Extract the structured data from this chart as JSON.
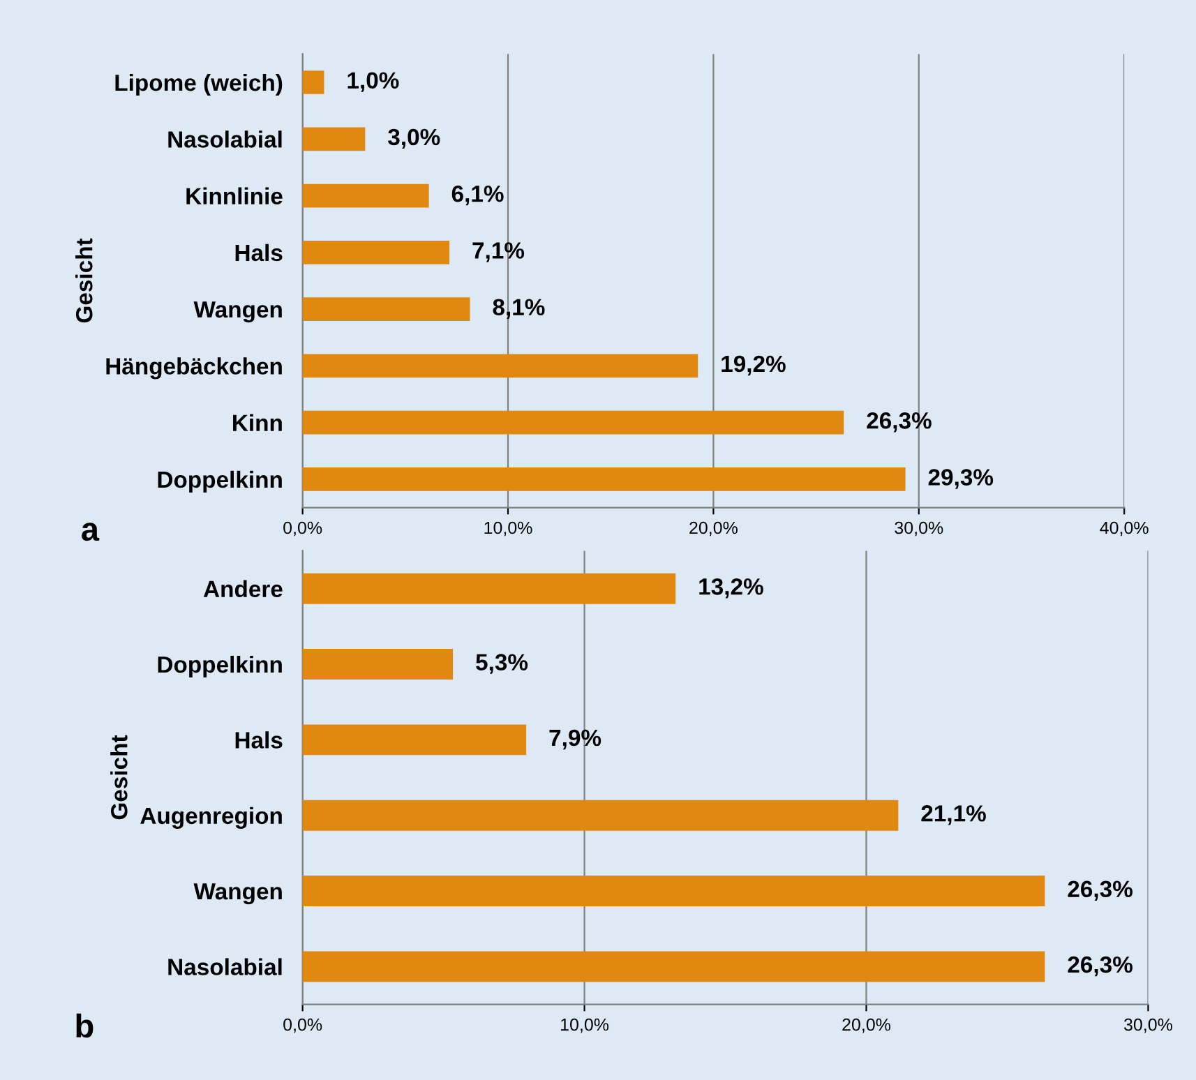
{
  "chart_data": [
    {
      "type": "bar",
      "orientation": "horizontal",
      "ylabel": "Gesicht",
      "annotations": [
        "a"
      ],
      "categories": [
        "Lipome (weich)",
        "Nasolabial",
        "Kinnlinie",
        "Hals",
        "Wangen",
        "Hängebäckchen",
        "Kinn",
        "Doppelkinn"
      ],
      "values": [
        1.0,
        3.0,
        6.1,
        7.1,
        8.1,
        19.2,
        26.3,
        29.3
      ],
      "value_labels": [
        "1,0%",
        "3,0%",
        "6,1%",
        "7,1%",
        "8,1%",
        "19,2%",
        "26,3%",
        "29,3%"
      ],
      "color": "#e0880f",
      "xlim": [
        0,
        40
      ],
      "xticks": [
        {
          "value": 0,
          "label": "0,0%"
        },
        {
          "value": 10,
          "label": "10,0%"
        },
        {
          "value": 20,
          "label": "20,0%"
        },
        {
          "value": 30,
          "label": "30,0%"
        },
        {
          "value": 40,
          "label": "40,0%"
        }
      ],
      "grid": "x"
    },
    {
      "type": "bar",
      "orientation": "horizontal",
      "ylabel": "Gesicht",
      "annotations": [
        "b"
      ],
      "categories": [
        "Andere",
        "Doppelkinn",
        "Hals",
        "Augenregion",
        "Wangen",
        "Nasolabial"
      ],
      "values": [
        13.2,
        5.3,
        7.9,
        21.1,
        26.3,
        26.3
      ],
      "value_labels": [
        "13,2%",
        "5,3%",
        "7,9%",
        "21,1%",
        "26,3%",
        "26,3%"
      ],
      "color": "#e0880f",
      "xlim": [
        0,
        30
      ],
      "xticks": [
        {
          "value": 0,
          "label": "0,0%"
        },
        {
          "value": 10,
          "label": "10,0%"
        },
        {
          "value": 20,
          "label": "20,0%"
        },
        {
          "value": 30,
          "label": "30,0%"
        }
      ],
      "grid": "x"
    }
  ]
}
